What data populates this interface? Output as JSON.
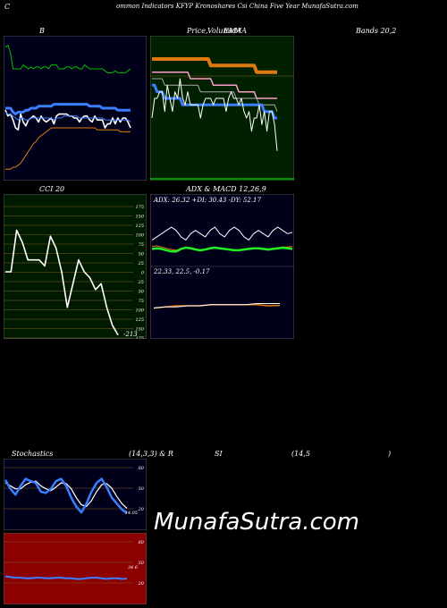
{
  "header": {
    "c": "C",
    "rest": "ommon  Indicators KFYP Kronoshares Csi  China  Five  Year MunafaSutra.com"
  },
  "labels": {
    "b": "B",
    "price": "Price,",
    "volume": "Volume",
    "ema": "EMA",
    "ma": "MA",
    "bands": "Bands 20,2",
    "cci": "CCI 20",
    "adx": "ADX  & MACD 12,26,9",
    "stoch_a": "Stochastics",
    "stoch_b": "(14,3,3) & R",
    "stoch_c": "SI",
    "stoch_d": "(14,5",
    "stoch_e": ")"
  },
  "adx_readout": "ADX: 26.32  +DI: 30.43 -DY: 52.17",
  "macd_readout": "22.33,  22.5,  -0.17",
  "cci_current": "-213",
  "stoch_current": "14.05",
  "rsi_current": "34.6",
  "brand": "MunafaSutra.com",
  "colors": {
    "panel_bg": "#00001a",
    "price_bg": "#002000",
    "cci_bg": "#001a00",
    "rsi_bg": "#8b0000",
    "grid": "#806020",
    "white": "#ffffff",
    "blue": "#3a7fff",
    "green": "#00c000",
    "orange": "#e07a10",
    "pink": "#ff9ec8",
    "brightgreen": "#22ee22"
  },
  "chart_data": [
    {
      "id": "bollinger",
      "type": "line",
      "title": "B",
      "series": [
        {
          "role": "upper",
          "values": [
            91,
            92,
            88,
            80,
            80,
            80,
            80,
            82,
            81,
            80,
            81,
            80,
            81,
            81,
            80,
            81,
            81,
            80,
            82,
            82,
            82,
            80,
            80,
            80,
            81,
            81,
            80,
            81,
            81,
            80,
            80,
            82,
            81,
            80,
            80,
            80,
            80,
            80,
            80,
            79,
            78,
            78,
            78,
            79,
            78,
            78,
            78,
            78,
            79,
            80
          ]
        },
        {
          "role": "middle",
          "values": [
            60,
            60,
            60,
            58,
            57,
            58,
            58,
            58,
            59,
            59,
            60,
            60,
            60,
            61,
            61,
            61,
            61,
            61,
            61,
            62,
            62,
            62,
            62,
            62,
            62,
            62,
            62,
            62,
            62,
            62,
            62,
            62,
            62,
            61,
            61,
            61,
            61,
            61,
            60,
            60,
            60,
            60,
            60,
            60,
            59,
            59,
            59,
            59,
            59,
            59
          ]
        },
        {
          "role": "lower",
          "values": [
            29,
            29,
            29,
            30,
            30,
            31,
            32,
            34,
            36,
            38,
            40,
            42,
            43,
            45,
            46,
            47,
            48,
            49,
            50,
            50,
            50,
            50,
            50,
            50,
            50,
            50,
            50,
            50,
            50,
            50,
            50,
            50,
            50,
            50,
            50,
            50,
            49,
            49,
            49,
            49,
            49,
            49,
            49,
            49,
            49,
            48,
            48,
            48,
            48,
            48
          ]
        },
        {
          "role": "close",
          "values": [
            59,
            56,
            57,
            54,
            50,
            49,
            57,
            53,
            51,
            54,
            55,
            56,
            55,
            53,
            56,
            54,
            53,
            54,
            55,
            52,
            56,
            57,
            57,
            57,
            57,
            56,
            56,
            55,
            55,
            53,
            55,
            56,
            56,
            54,
            53,
            56,
            54,
            54,
            54,
            50,
            52,
            52,
            55,
            52,
            55,
            53,
            55,
            55,
            53,
            50
          ]
        },
        {
          "role": "ema",
          "values": [
            58,
            57,
            57,
            56,
            55,
            54,
            55,
            55,
            54,
            54,
            55,
            55,
            55,
            55,
            55,
            55,
            55,
            55,
            55,
            54,
            55,
            55,
            55,
            56,
            56,
            56,
            56,
            56,
            56,
            55,
            55,
            55,
            55,
            55,
            55,
            55,
            55,
            55,
            55,
            54,
            54,
            54,
            54,
            54,
            54,
            54,
            54,
            54,
            54,
            53
          ]
        }
      ]
    },
    {
      "id": "price_ema_ma",
      "type": "line",
      "title": "Price,   Volume   EMA   MA",
      "series": [
        {
          "role": "orange",
          "values": [
            63,
            63,
            63,
            63,
            63,
            63,
            63,
            63,
            63,
            63,
            63,
            63,
            63,
            63,
            63,
            63,
            63,
            63,
            63,
            63,
            63,
            63,
            63,
            62,
            62,
            62,
            62,
            62,
            62,
            62,
            62,
            62,
            62,
            62,
            62,
            62,
            62,
            62,
            62,
            62,
            62,
            61,
            61,
            61,
            61,
            61,
            61,
            61,
            61,
            61
          ]
        },
        {
          "role": "pink",
          "values": [
            61,
            61,
            61,
            61,
            61,
            61,
            61,
            61,
            61,
            61,
            61,
            61,
            61,
            61,
            61,
            60,
            60,
            60,
            60,
            60,
            60,
            60,
            60,
            60,
            59,
            59,
            59,
            59,
            59,
            59,
            59,
            59,
            59,
            59,
            58,
            58,
            58,
            58,
            58,
            58,
            58,
            57,
            57,
            57,
            57,
            57,
            57,
            57,
            57,
            57
          ]
        },
        {
          "role": "grey",
          "values": [
            60,
            60,
            60,
            60,
            60,
            59,
            59,
            59,
            59,
            59,
            59,
            59,
            59,
            59,
            59,
            59,
            59,
            59,
            59,
            58,
            58,
            58,
            58,
            58,
            58,
            58,
            58,
            58,
            58,
            58,
            58,
            58,
            58,
            57,
            57,
            57,
            57,
            57,
            57,
            57,
            57,
            57,
            56,
            56,
            56,
            56,
            56,
            56,
            56,
            55
          ]
        },
        {
          "role": "blue",
          "values": [
            59,
            59,
            58,
            58,
            58,
            57,
            57,
            57,
            57,
            57,
            57,
            57,
            56,
            56,
            56,
            56,
            56,
            56,
            56,
            56,
            56,
            56,
            56,
            56,
            56,
            56,
            56,
            56,
            56,
            56,
            56,
            56,
            56,
            56,
            56,
            56,
            56,
            56,
            56,
            56,
            56,
            56,
            56,
            56,
            55,
            55,
            55,
            55,
            54,
            54
          ]
        },
        {
          "role": "close",
          "values": [
            54,
            57,
            57,
            58,
            58,
            55,
            59,
            57,
            55,
            58,
            57,
            60,
            57,
            56,
            58,
            56,
            56,
            56,
            56,
            54,
            56,
            57,
            57,
            57,
            56,
            57,
            57,
            57,
            57,
            55,
            57,
            58,
            57,
            57,
            56,
            57,
            55,
            54,
            55,
            52,
            54,
            54,
            56,
            53,
            55,
            52,
            55,
            55,
            53,
            49
          ]
        }
      ]
    },
    {
      "id": "cci",
      "type": "line",
      "title": "CCI 20",
      "ytick_labels": [
        "175",
        "150",
        "125",
        "100",
        "75",
        "50",
        "25",
        "0",
        "25",
        "50",
        "75",
        "100",
        "125",
        "150",
        "175"
      ],
      "series": [
        {
          "name": "CCI",
          "values": [
            0,
            0,
            140,
            100,
            40,
            40,
            40,
            20,
            120,
            80,
            0,
            -120,
            -40,
            40,
            0,
            -20,
            -60,
            -40,
            -120,
            -180,
            -213
          ]
        }
      ]
    },
    {
      "id": "adx_macd",
      "type": "line",
      "title": "ADX  & MACD 12,26,9",
      "series": [
        {
          "name": "ADX",
          "values": [
            26,
            27,
            26,
            24,
            22,
            22,
            26,
            28,
            27,
            25,
            24,
            25,
            27,
            28,
            27,
            26,
            25,
            24,
            24,
            25,
            26,
            27,
            27,
            26,
            25,
            26,
            27,
            28,
            27,
            26
          ]
        },
        {
          "name": "+DI",
          "values": [
            30,
            31,
            29,
            27,
            25,
            24,
            27,
            29,
            28,
            26,
            25,
            26,
            28,
            29,
            27,
            26,
            25,
            25,
            24,
            26,
            27,
            28,
            28,
            27,
            26,
            27,
            28,
            29,
            29,
            30
          ]
        },
        {
          "name": "-DI",
          "values": [
            40,
            45,
            50,
            55,
            60,
            55,
            45,
            40,
            50,
            55,
            50,
            45,
            55,
            60,
            50,
            45,
            55,
            60,
            55,
            45,
            40,
            50,
            55,
            50,
            45,
            55,
            60,
            55,
            50,
            52
          ]
        },
        {
          "name": "MACD",
          "values": [
            22.1,
            22.2,
            22.3,
            22.3,
            22.3,
            22.4,
            22.4,
            22.4,
            22.4,
            22.4,
            22.3,
            22.33
          ]
        },
        {
          "name": "Signal",
          "values": [
            22.1,
            22.2,
            22.2,
            22.3,
            22.3,
            22.4,
            22.4,
            22.4,
            22.4,
            22.5,
            22.5,
            22.5
          ]
        }
      ]
    },
    {
      "id": "stochastics",
      "type": "line",
      "title": "Stochastics (14,3,3)",
      "ytick_labels": [
        "80",
        "50",
        "20"
      ],
      "series": [
        {
          "name": "%K",
          "values": [
            70,
            55,
            45,
            60,
            72,
            68,
            65,
            50,
            48,
            55,
            68,
            72,
            60,
            40,
            25,
            15,
            30,
            50,
            65,
            72,
            58,
            40,
            30,
            20,
            14
          ]
        },
        {
          "name": "%D",
          "values": [
            65,
            60,
            55,
            55,
            62,
            66,
            68,
            60,
            55,
            52,
            58,
            65,
            64,
            55,
            40,
            28,
            25,
            35,
            50,
            62,
            64,
            56,
            42,
            30,
            22
          ]
        }
      ]
    },
    {
      "id": "rsi",
      "type": "line",
      "title": "RSI (14,5)",
      "ytick_labels": [
        "80",
        "50",
        "20"
      ],
      "series": [
        {
          "name": "RSI",
          "values": [
            38,
            37,
            36,
            36,
            35,
            35,
            36,
            36,
            35,
            35,
            36,
            36,
            35,
            35,
            34,
            34,
            35,
            36,
            36,
            35,
            34,
            35,
            35,
            34,
            34.6
          ]
        }
      ]
    }
  ]
}
